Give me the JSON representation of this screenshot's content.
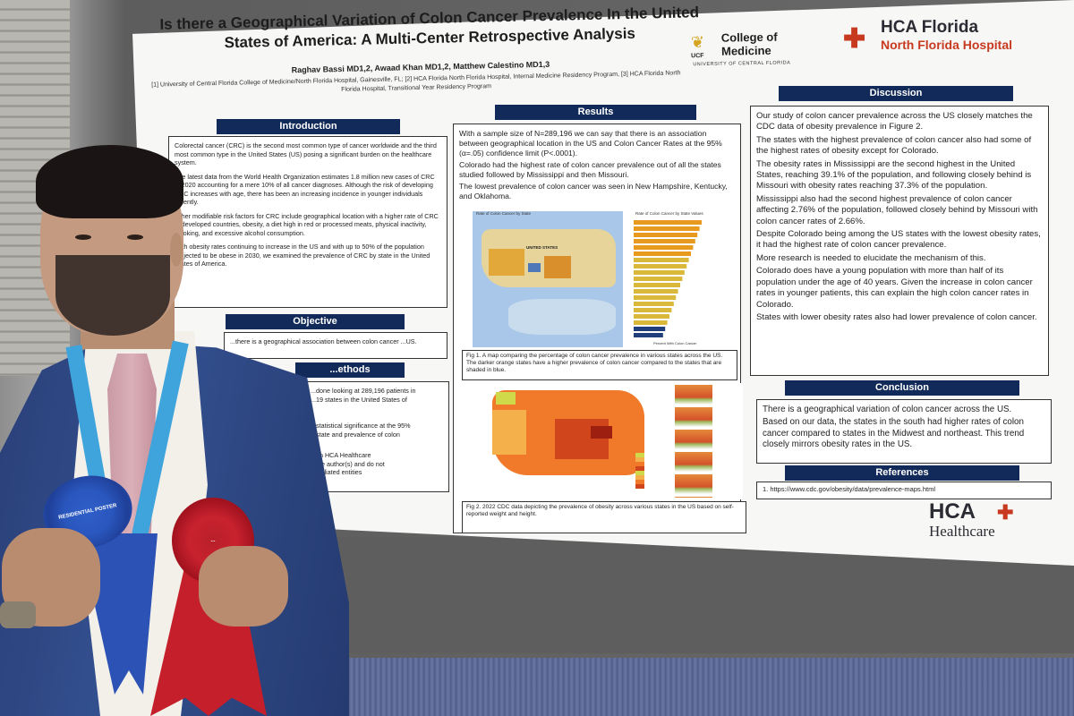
{
  "poster": {
    "title": "Is there a Geographical Variation of Colon Cancer Prevalence In the United States of America: A Multi-Center Retrospective Analysis",
    "authors": "Raghav Bassi MD1,2, Awaad Khan MD1,2, Matthew Calestino MD1,3",
    "affiliations": "[1] University of Central Florida College of Medicine/North Florida Hospital, Gainesville, FL; [2] HCA Florida North Florida Hospital, Internal Medicine Residency Program, [3] HCA Florida North Florida Hospital, Transitional Year Residency Program",
    "ucf_logo": {
      "abbr": "UCF",
      "name_line1": "College of",
      "name_line2": "Medicine",
      "sub": "UNIVERSITY OF CENTRAL FLORIDA"
    },
    "hca_florida_logo": {
      "line1": "HCA Florida",
      "line2": "North Florida Hospital"
    },
    "hca_healthcare_logo": {
      "line1": "HCA",
      "line2": "Healthcare"
    },
    "introduction": {
      "header": "Introduction",
      "paragraphs": [
        "Colorectal cancer (CRC) is the second most common type of cancer worldwide and the third most common type in the United States (US) posing a significant burden on the healthcare system.",
        "The latest data from the World Health Organization estimates 1.8 million new cases of CRC in 2020 accounting for a mere 10% of all cancer diagnoses. Although the risk of developing CRC increases with age, there has been an increasing incidence in younger individuals recently.",
        "Other modifiable risk factors for CRC include geographical location with a higher rate of CRC in developed countries, obesity, a diet high in red or processed meats, physical inactivity, smoking, and excessive alcohol consumption.",
        "With obesity rates continuing to increase in the US and with up to 50% of the population projected to be obese in 2030, we examined the prevalence of CRC by state in the United States of America."
      ]
    },
    "objective": {
      "header": "Objective",
      "text": "...there is a geographical association between colon cancer ...US."
    },
    "methods": {
      "header": "...ethods",
      "lines": [
        "...done looking at 289,196 patients in",
        "...19 states in the United States of",
        "...statistical significance at the 95%",
        "...state and prevalence of colon",
        "...an HCA Healthcare",
        "...the author(s) and do not",
        "...affiliated entities"
      ]
    },
    "results": {
      "header": "Results",
      "bullets": [
        "With a sample size of N=289,196 we can say that there is an association between geographical location in the US and Colon Cancer Rates at the 95% (α=.05) confidence limit (P<.0001).",
        "Colorado had the highest rate of colon cancer prevalence out of all the states studied followed by Mississippi and then Missouri.",
        "The lowest prevalence of colon cancer was seen in New Hampshire, Kentucky, and Oklahoma."
      ],
      "fig1_title_left": "Rate of Colon Cancer by State",
      "fig1_title_right": "Rate of Colon Cancer by State Values",
      "fig1_map_label": "UNITED STATES",
      "fig1_xlabel": "Percent With Colon Cancer",
      "fig1_caption": "Fig 1. A map comparing the percentage of colon cancer prevalence in various states across the US. The darker orange states have a higher prevalence of colon cancer compared to the states that are shaded in blue.",
      "fig2_caption": "Fig 2. 2022 CDC data depicting the prevalence of obesity across various states in the US based on self-reported weight and height."
    },
    "discussion": {
      "header": "Discussion",
      "bullets": [
        "Our study of colon cancer prevalence across the US closely matches the CDC data of obesity prevalence in Figure 2.",
        "The states with the highest prevalence of colon cancer also had some of the highest rates of obesity except for Colorado.",
        "The obesity rates in Mississippi are the second highest in the United States, reaching 39.1% of the population, and following closely behind is Missouri with obesity rates reaching 37.3% of the population.",
        "Mississippi also had the second highest prevalence of colon cancer affecting 2.76% of the population, followed closely behind by Missouri with colon cancer rates of 2.66%.",
        "Despite Colorado being among the US states with the lowest obesity rates, it had the highest rate of colon cancer prevalence.",
        "More research is needed to elucidate the mechanism of this.",
        "Colorado does have a young population with more than half of its population under the age of 40 years. Given the increase in colon cancer rates in younger patients, this can explain the high colon cancer rates in Colorado.",
        "States with lower obesity rates also had lower prevalence of colon cancer."
      ]
    },
    "conclusion": {
      "header": "Conclusion",
      "bullets": [
        "There is a geographical variation of colon cancer across the US.",
        "Based on our data, the states in the south had higher rates of colon cancer compared to states in the Midwest and northeast. This trend closely mirrors obesity rates in the US."
      ]
    },
    "references": {
      "header": "References",
      "items": [
        "1.  https://www.cdc.gov/obesity/data/prevalence-maps.html"
      ]
    }
  },
  "ribbons": {
    "blue": "RESIDENTIAL POSTER",
    "red": "..."
  },
  "colors": {
    "navy_header": "#122a59",
    "hca_orange": "#c73a1f",
    "blue_ribbon": "#2b52b4",
    "red_ribbon": "#c41f2a",
    "jacket": "#2f4684"
  }
}
